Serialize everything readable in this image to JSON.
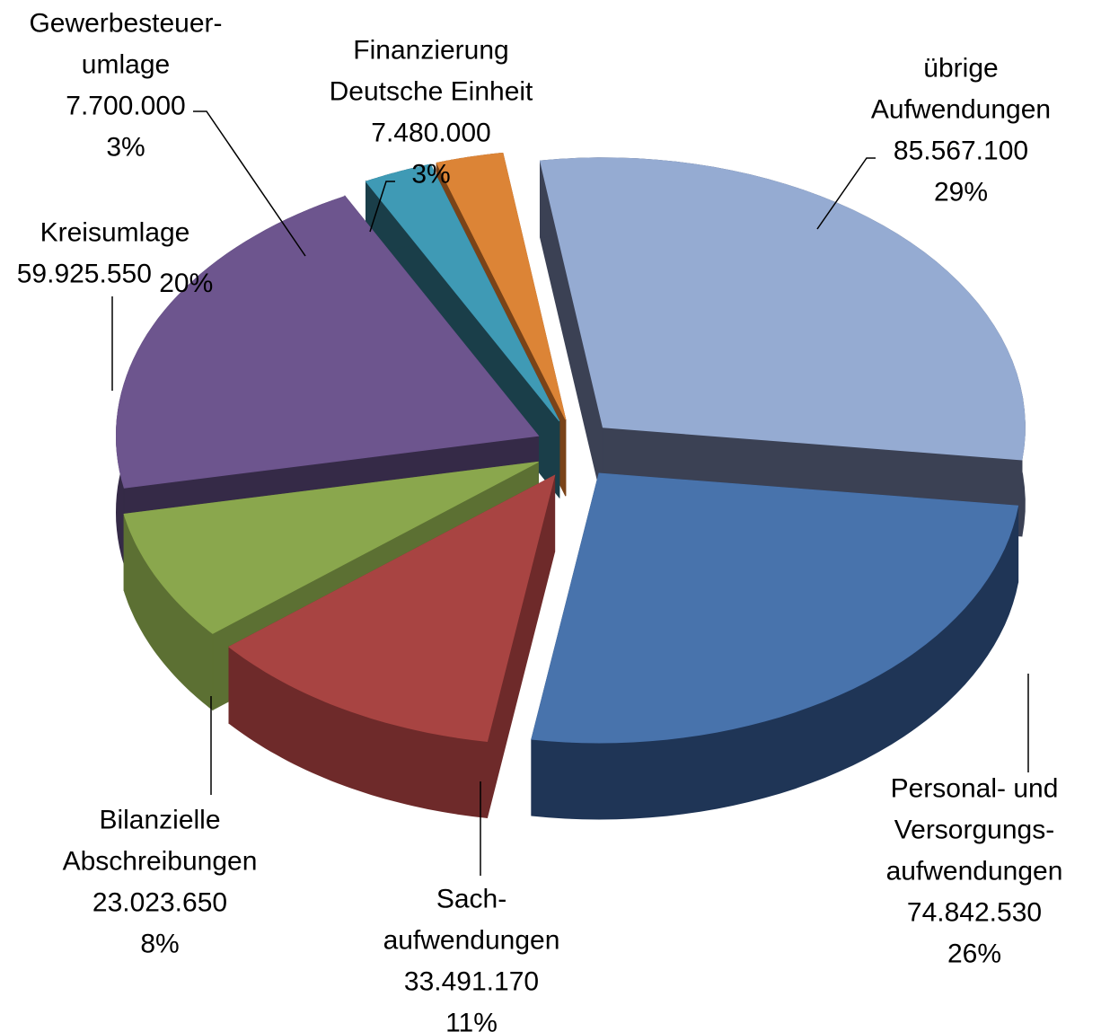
{
  "chart_data": {
    "type": "pie3d",
    "categories": [
      "übrige\nAufwendungen",
      "Personal- und\nVersorgungs-\naufwendungen",
      "Sach-\naufwendungen",
      "Bilanzielle\nAbschreibungen",
      "Kreisumlage",
      "Gewerbesteuer-\numlage",
      "Finanzierung\nDeutsche Einheit"
    ],
    "values": [
      85567100,
      74842530,
      33491170,
      23023650,
      59925550,
      7700000,
      7480000
    ],
    "value_labels": [
      "85.567.100",
      "74.842.530",
      "33.491.170",
      "23.023.650",
      "59.925.550",
      "7.700.000",
      "7.480.000"
    ],
    "percents": [
      29,
      26,
      11,
      8,
      20,
      3,
      3
    ],
    "percent_labels": [
      "29%",
      "26%",
      "11%",
      "8%",
      "20%",
      "3%",
      "3%"
    ],
    "colors": [
      "#95abd2",
      "#4873ac",
      "#a84442",
      "#8aa74d",
      "#6d558e",
      "#3f9ab5",
      "#dc8436"
    ],
    "side_colors": [
      "#3b4154",
      "#1f3556",
      "#6e2a2a",
      "#5c7033",
      "#352a47",
      "#1a3e49",
      "#7a4318"
    ]
  }
}
